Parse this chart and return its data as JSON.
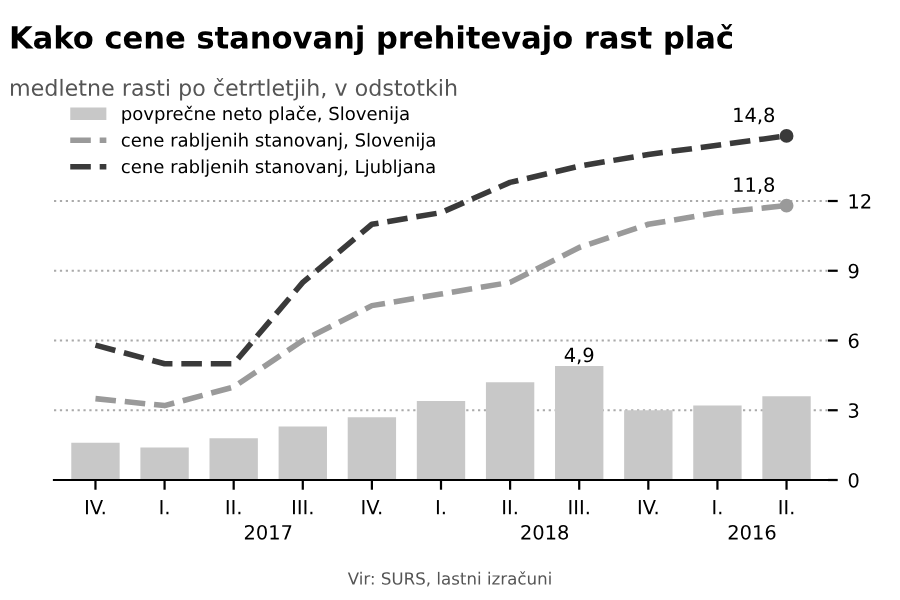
{
  "chart_data": {
    "type": "bar",
    "title": "Kako cene stanovanj prehitevajo rast plač",
    "subtitle": "medletne rasti po četrtletjih, v odstotkih",
    "categories": [
      "IV.",
      "I.",
      "II.",
      "III.",
      "IV.",
      "I.",
      "II.",
      "III.",
      "IV.",
      "I.",
      "II."
    ],
    "series": [
      {
        "name": "povprečne neto plače, Slovenija",
        "color": "#c8c8c8",
        "values": [
          1.6,
          1.4,
          1.8,
          2.3,
          2.7,
          3.4,
          4.2,
          4.9,
          3.0,
          3.2,
          3.6
        ],
        "value_labels": [
          null,
          null,
          null,
          null,
          null,
          null,
          null,
          "4,9",
          null,
          null,
          null
        ]
      },
      {
        "name": "cene rabljenih stanovanj, Slovenija",
        "type": "line",
        "color": "#9a9a9a",
        "line_style": "dashed",
        "values": [
          3.5,
          3.2,
          4.0,
          6.0,
          7.5,
          8.0,
          8.5,
          10.0,
          11.0,
          11.5,
          11.8
        ],
        "value_labels": [
          null,
          null,
          null,
          null,
          null,
          null,
          null,
          null,
          null,
          null,
          "11,8"
        ]
      },
      {
        "name": "cene rabljenih stanovanj, Ljubljana",
        "type": "line",
        "color": "#3a3a3a",
        "line_style": "dashed",
        "values": [
          5.8,
          5.0,
          5.0,
          8.5,
          11.0,
          11.5,
          12.8,
          13.5,
          14.0,
          14.4,
          14.8
        ],
        "value_labels": [
          null,
          null,
          null,
          null,
          null,
          null,
          null,
          null,
          null,
          null,
          "14,8"
        ]
      }
    ],
    "ylim": [
      0,
      16
    ],
    "yticks": [
      0,
      3,
      6,
      9,
      12
    ],
    "grid": "y",
    "legend": "top left",
    "annotations": [
      "2017",
      "2018",
      "2016",
      "Vir: SURS, lastni izračuni"
    ]
  }
}
